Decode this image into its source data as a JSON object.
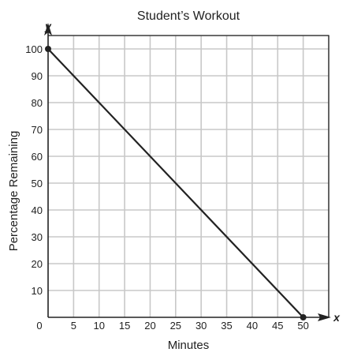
{
  "chart_data": {
    "type": "line",
    "title": "Student’s Workout",
    "xlabel": "Minutes",
    "ylabel": "Percentage Remaining",
    "x_var": "x",
    "y_var": "y",
    "origin_label": "0",
    "xlim": [
      0,
      55
    ],
    "ylim": [
      0,
      105
    ],
    "x_ticks": [
      5,
      10,
      15,
      20,
      25,
      30,
      35,
      40,
      45,
      50
    ],
    "y_ticks": [
      10,
      20,
      30,
      40,
      50,
      60,
      70,
      80,
      90,
      100
    ],
    "grid": true,
    "series": [
      {
        "points": [
          {
            "x": 0,
            "y": 100
          },
          {
            "x": 50,
            "y": 0
          }
        ]
      }
    ]
  }
}
